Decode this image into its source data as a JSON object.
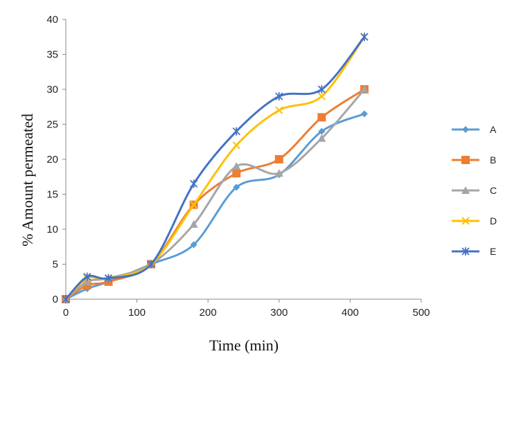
{
  "chart_data": {
    "type": "line",
    "title": "",
    "xlabel": "Time (min)",
    "ylabel": "% Amount permeated",
    "xlim": [
      0,
      500
    ],
    "ylim": [
      0,
      40
    ],
    "xticks": [
      0,
      100,
      200,
      300,
      400,
      500
    ],
    "yticks": [
      0,
      5,
      10,
      15,
      20,
      25,
      30,
      35,
      40
    ],
    "grid": false,
    "smooth": true,
    "legend_position": "right",
    "x": [
      0,
      30,
      60,
      120,
      180,
      240,
      300,
      360,
      420
    ],
    "series": [
      {
        "name": "A",
        "color": "#5B9BD5",
        "marker": "diamond",
        "values": [
          0,
          1.5,
          2.5,
          5,
          7.8,
          16,
          17.8,
          24,
          26.5
        ]
      },
      {
        "name": "B",
        "color": "#ED7D31",
        "marker": "square",
        "values": [
          0,
          2,
          2.5,
          5,
          13.5,
          18,
          20,
          26,
          30
        ]
      },
      {
        "name": "C",
        "color": "#A5A5A5",
        "marker": "triangle",
        "values": [
          0,
          2.5,
          3,
          5,
          10.7,
          19,
          18,
          23,
          30
        ]
      },
      {
        "name": "D",
        "color": "#FFC000",
        "marker": "x",
        "values": [
          0,
          3,
          3,
          5,
          13.5,
          22,
          27,
          29,
          37.5
        ]
      },
      {
        "name": "E",
        "color": "#4472C4",
        "marker": "star",
        "values": [
          0,
          3.2,
          3,
          5,
          16.5,
          24,
          29,
          30,
          37.5
        ]
      }
    ]
  }
}
